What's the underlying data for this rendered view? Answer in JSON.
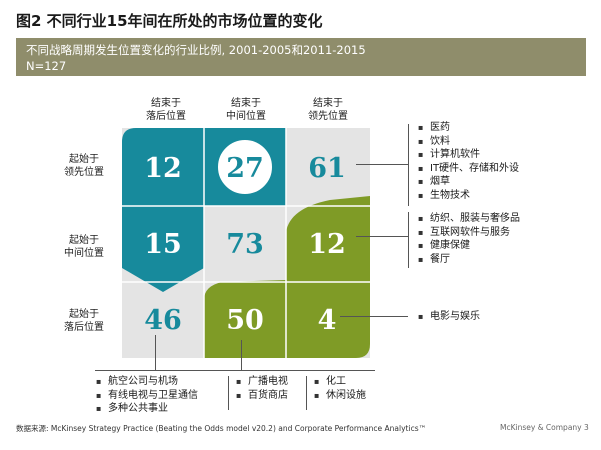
{
  "title": "图2 不同行业15年间在所处的市场位置的变化",
  "banner": {
    "line1": "不同战略周期发生位置变化的行业比例, 2001-2005和2011-2015",
    "line2": "N=127"
  },
  "columns": [
    "结束于\n落后位置",
    "结束于\n中间位置",
    "结束于\n领先位置"
  ],
  "rows": [
    "起始于\n领先位置",
    "起始于\n中间位置",
    "起始于\n落后位置"
  ],
  "matrix": [
    [
      "12",
      "27",
      "61"
    ],
    [
      "15",
      "73",
      "12"
    ],
    [
      "46",
      "50",
      "4"
    ]
  ],
  "colors": {
    "teal": "#178a9c",
    "green": "#7f9b26",
    "gray": "#e4e4e4",
    "banner": "#8f8d6b"
  },
  "right_lists": {
    "top": [
      "医药",
      "饮料",
      "计算机软件",
      "IT硬件、存储和外设",
      "烟草",
      "生物技术"
    ],
    "middle": [
      "纺织、服装与奢侈品",
      "互联网软件与服务",
      "健康保健",
      "餐厅"
    ],
    "bottom": [
      "电影与娱乐"
    ]
  },
  "bottom_lists": {
    "left": [
      "航空公司与机场",
      "有线电视与卫星通信",
      "多种公共事业"
    ],
    "middle": [
      "广播电视",
      "百货商店"
    ],
    "right": [
      "化工",
      "休闲设施"
    ]
  },
  "footer": "数据来源: McKinsey Strategy Practice (Beating the Odds model v20.2) and Corporate Performance Analytics™",
  "footer_right": "McKinsey & Company   3"
}
